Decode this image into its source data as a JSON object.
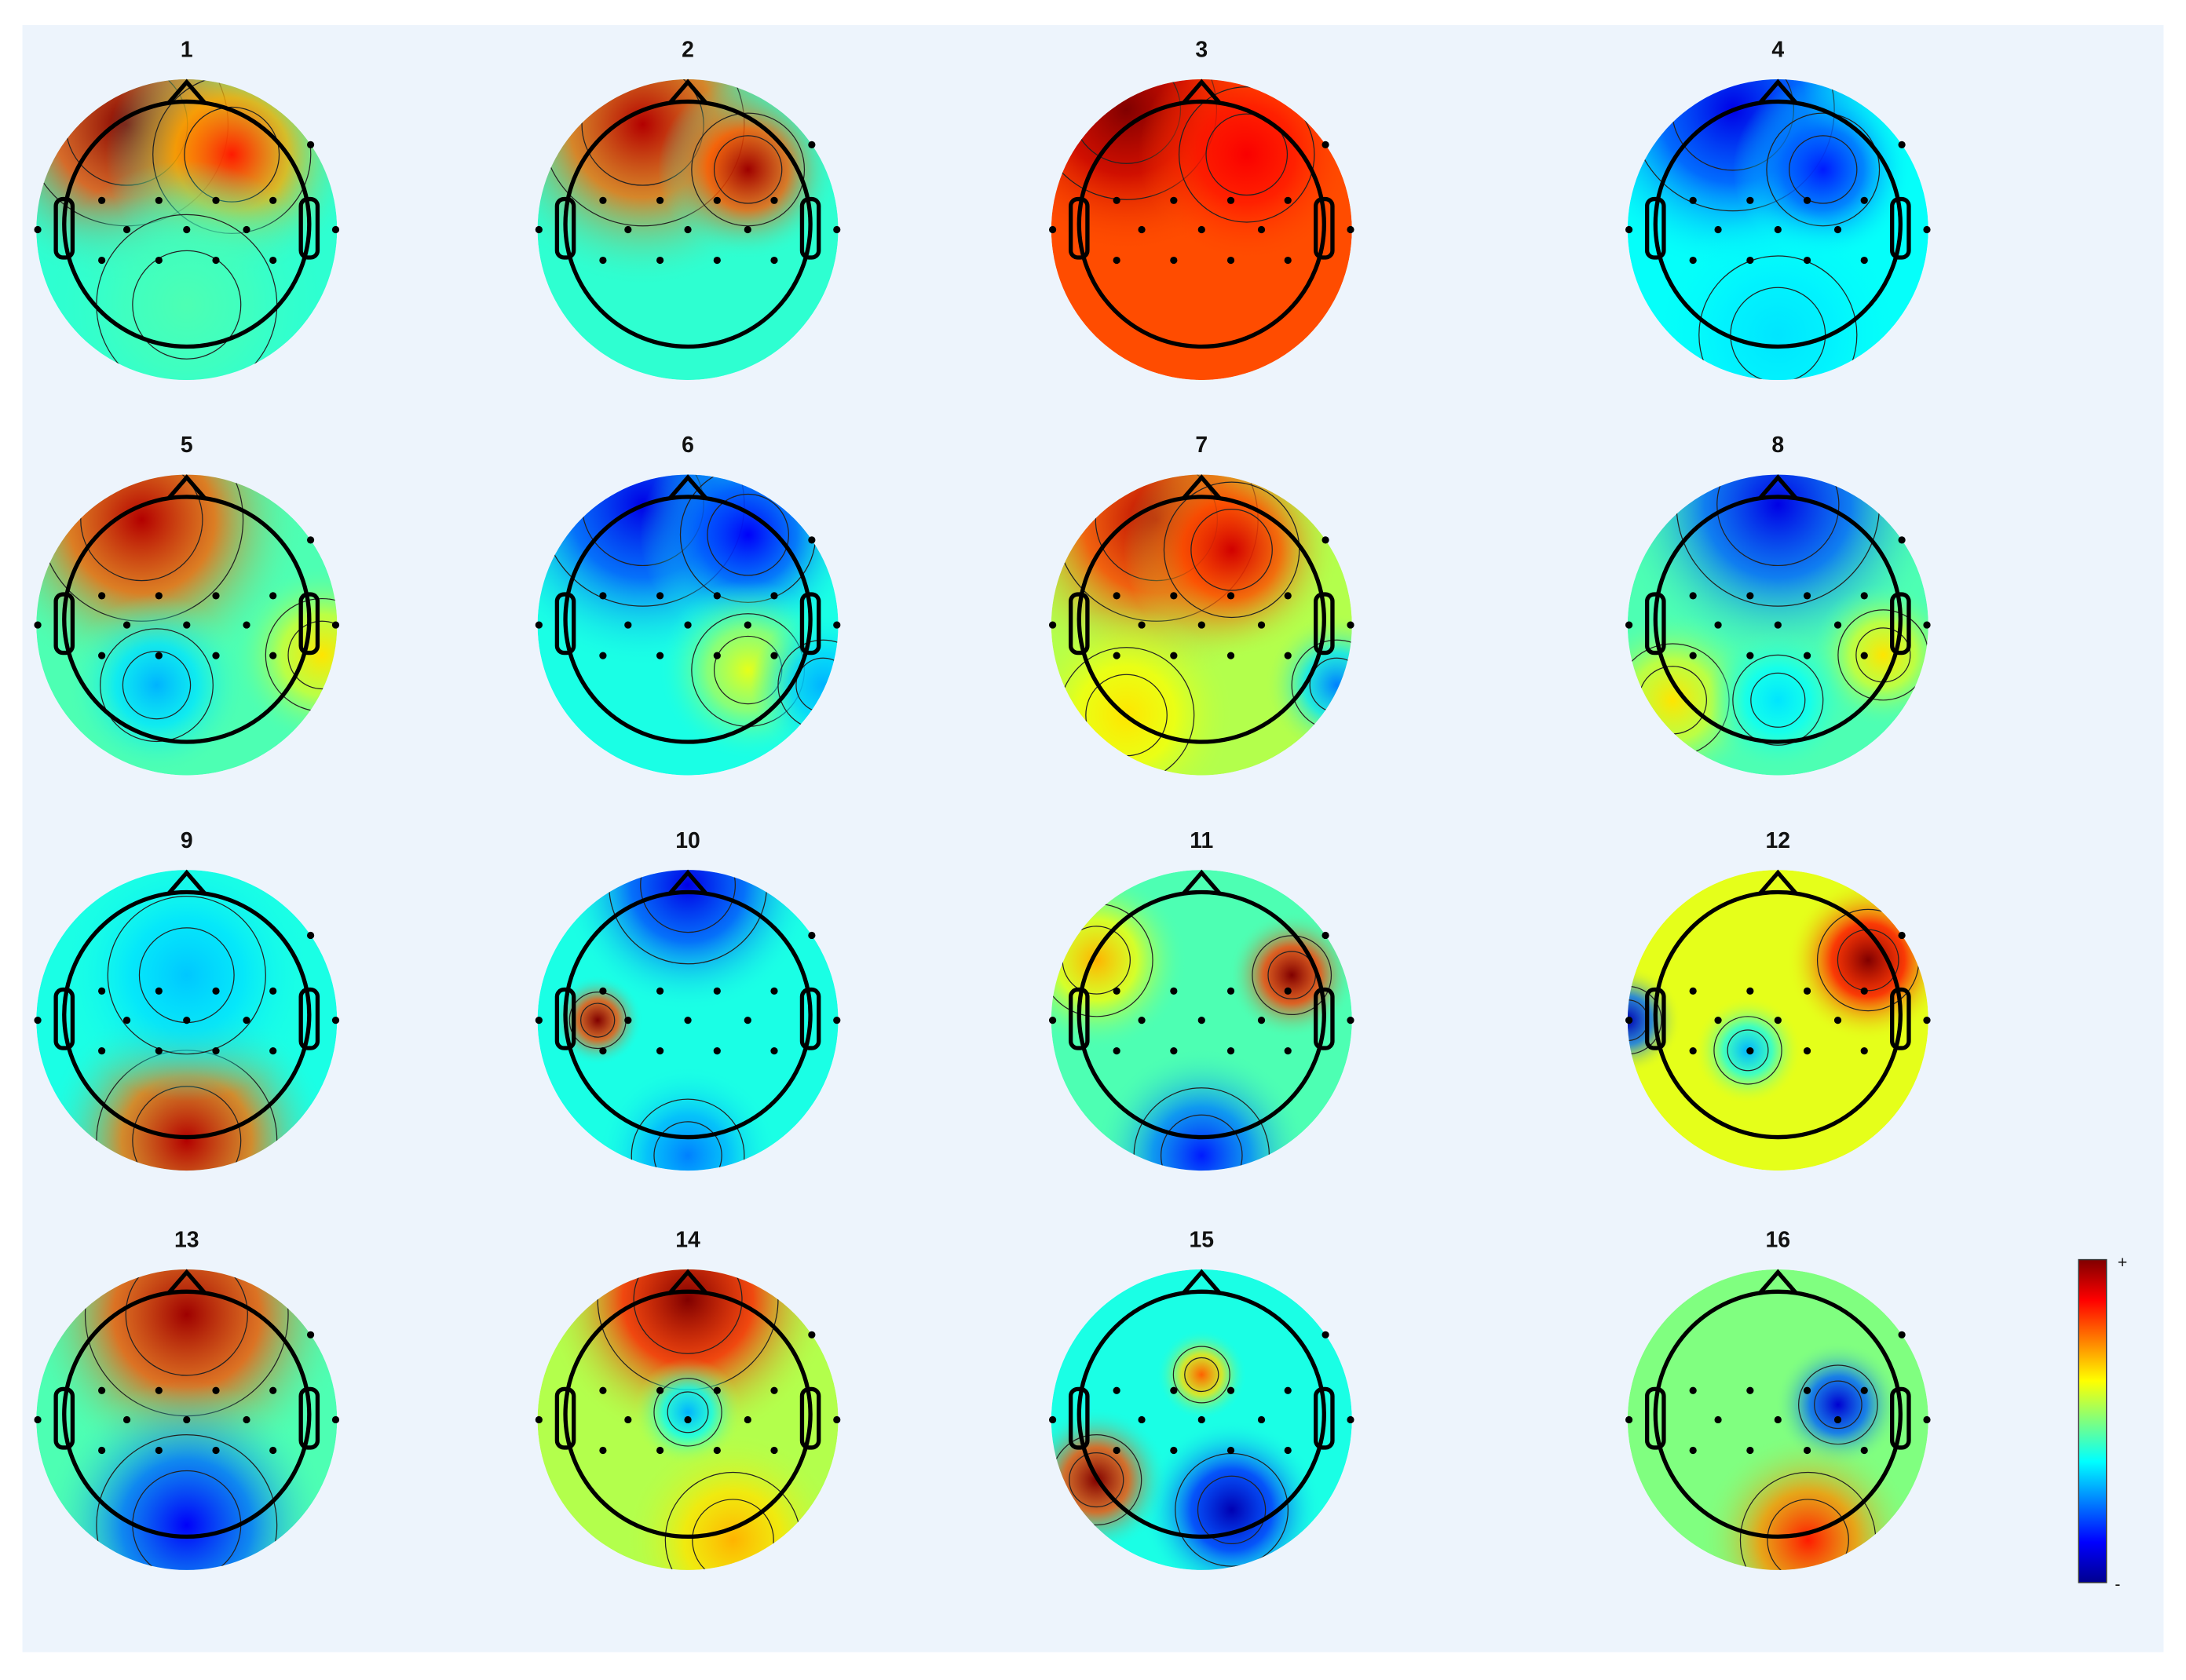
{
  "maps": [
    {
      "title": "1"
    },
    {
      "title": "2"
    },
    {
      "title": "3"
    },
    {
      "title": "4"
    },
    {
      "title": "5"
    },
    {
      "title": "6"
    },
    {
      "title": "7"
    },
    {
      "title": "8"
    },
    {
      "title": "9"
    },
    {
      "title": "10"
    },
    {
      "title": "11"
    },
    {
      "title": "12"
    },
    {
      "title": "13"
    },
    {
      "title": "14"
    },
    {
      "title": "15"
    },
    {
      "title": "16"
    }
  ],
  "colorbar": {
    "max_label": "+",
    "min_label": "-"
  }
}
